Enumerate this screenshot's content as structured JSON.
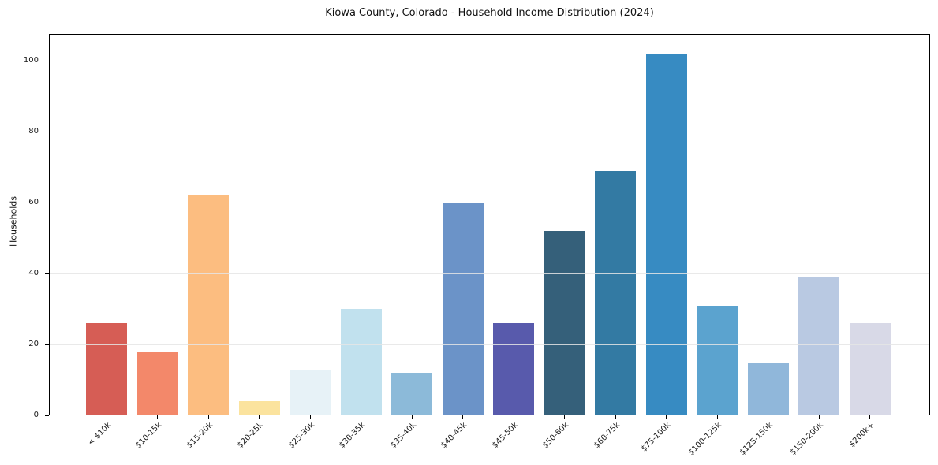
{
  "chart_data": {
    "type": "bar",
    "title": "Kiowa County, Colorado - Household Income Distribution (2024)",
    "xlabel": "",
    "ylabel": "Households",
    "categories": [
      "< $10k",
      "$10-15k",
      "$15-20k",
      "$20-25k",
      "$25-30k",
      "$30-35k",
      "$35-40k",
      "$40-45k",
      "$45-50k",
      "$50-60k",
      "$60-75k",
      "$75-100k",
      "$100-125k",
      "$125-150k",
      "$150-200k",
      "$200k+"
    ],
    "values": [
      26,
      18,
      62,
      4,
      13,
      30,
      12,
      60,
      26,
      52,
      69,
      102,
      31,
      15,
      39,
      26
    ],
    "bar_colors": [
      "#d65d55",
      "#f3886a",
      "#fcbd80",
      "#fbe39e",
      "#e7f2f7",
      "#c1e1ee",
      "#8cbad9",
      "#6b93c8",
      "#585aac",
      "#35607a",
      "#337aa3",
      "#378bc2",
      "#5ba3cf",
      "#90b7da",
      "#b9c9e2",
      "#d8d9e7"
    ],
    "yticks": [
      0,
      20,
      40,
      60,
      80,
      100
    ],
    "ylim": [
      0,
      108
    ],
    "grid": "horizontal",
    "grid_color": "#e5e5e5",
    "background_color": "#ffffff",
    "legend": "none"
  }
}
